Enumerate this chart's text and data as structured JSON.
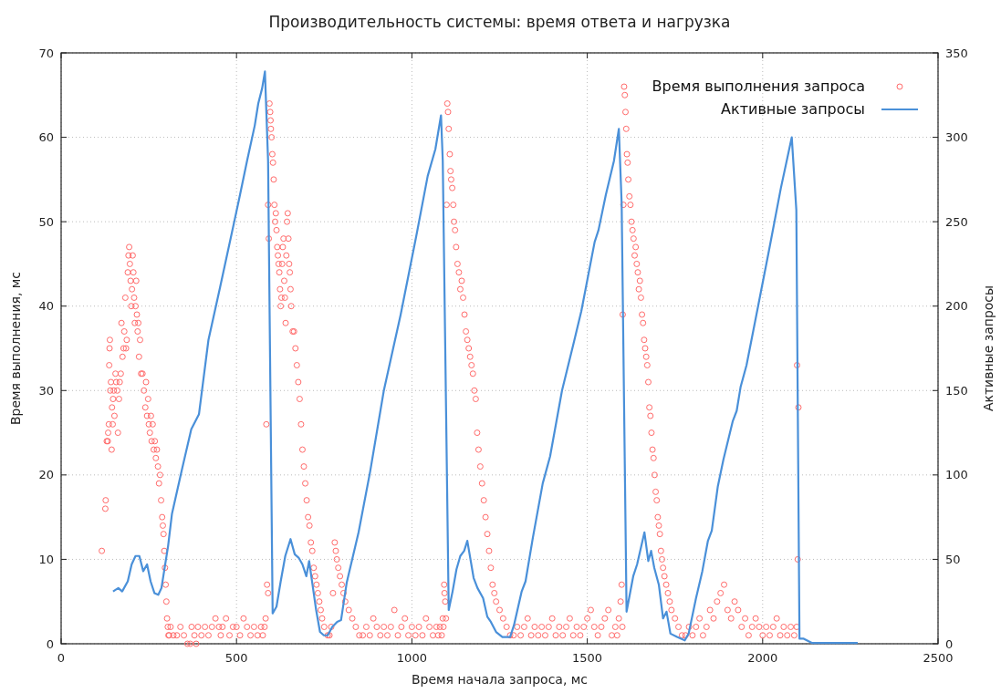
{
  "chart_data": {
    "type": "scatter",
    "title": "Производительность системы: время ответа и нагрузка",
    "xlabel": "Время начала запроса, мс",
    "ylabel": "Время выполнения, мс",
    "y2label": "Активные запросы",
    "xlim": [
      0,
      2500
    ],
    "xticks": [
      0,
      500,
      1000,
      1500,
      2000,
      2500
    ],
    "ylim": [
      0,
      70
    ],
    "yticks": [
      0,
      10,
      20,
      30,
      40,
      50,
      60,
      70
    ],
    "y2lim": [
      0,
      350
    ],
    "y2ticks": [
      0,
      50,
      100,
      150,
      200,
      250,
      300,
      350
    ],
    "grid": true,
    "legend": "top right",
    "series": [
      {
        "name": "Время выполнения запроса",
        "marker": "circle",
        "color": "#ff6b6b",
        "x": [
          116,
          126,
          127,
          130,
          133,
          134,
          136,
          137,
          138,
          139,
          140,
          142,
          144,
          145,
          147,
          148,
          150,
          152,
          155,
          157,
          160,
          162,
          165,
          167,
          170,
          172,
          175,
          178,
          180,
          183,
          185,
          187,
          190,
          192,
          194,
          196,
          198,
          200,
          202,
          204,
          206,
          208,
          210,
          212,
          214,
          216,
          218,
          220,
          222,
          225,
          228,
          232,
          236,
          240,
          242,
          245,
          248,
          250,
          253,
          256,
          258,
          261,
          264,
          267,
          270,
          273,
          276,
          279,
          282,
          285,
          288,
          290,
          292,
          294,
          296,
          298,
          300,
          302,
          304,
          306,
          308,
          312,
          320,
          330,
          340,
          350,
          360,
          368,
          372,
          380,
          385,
          390,
          400,
          410,
          420,
          430,
          440,
          450,
          455,
          460,
          470,
          480,
          490,
          500,
          510,
          520,
          530,
          540,
          550,
          560,
          570,
          575,
          580,
          583,
          585,
          587,
          590,
          590,
          592,
          594,
          596,
          597,
          598,
          600,
          602,
          604,
          606,
          608,
          610,
          612,
          614,
          616,
          618,
          620,
          622,
          624,
          626,
          628,
          630,
          632,
          634,
          636,
          638,
          640,
          642,
          644,
          646,
          648,
          650,
          652,
          654,
          656,
          660,
          664,
          668,
          672,
          676,
          680,
          684,
          688,
          692,
          696,
          700,
          704,
          708,
          712,
          716,
          720,
          724,
          728,
          732,
          736,
          740,
          744,
          750,
          760,
          765,
          770,
          775,
          780,
          783,
          786,
          790,
          795,
          800,
          805,
          810,
          820,
          830,
          840,
          850,
          860,
          870,
          880,
          890,
          900,
          910,
          920,
          930,
          940,
          950,
          960,
          970,
          980,
          990,
          1000,
          1010,
          1020,
          1030,
          1040,
          1050,
          1060,
          1070,
          1075,
          1080,
          1085,
          1088,
          1090,
          1092,
          1093,
          1095,
          1097,
          1099,
          1101,
          1103,
          1105,
          1108,
          1110,
          1112,
          1115,
          1118,
          1120,
          1123,
          1126,
          1130,
          1134,
          1138,
          1142,
          1146,
          1150,
          1154,
          1158,
          1162,
          1166,
          1170,
          1174,
          1178,
          1182,
          1186,
          1190,
          1195,
          1200,
          1205,
          1210,
          1215,
          1220,
          1225,
          1230,
          1235,
          1240,
          1250,
          1260,
          1270,
          1280,
          1290,
          1300,
          1310,
          1320,
          1330,
          1340,
          1350,
          1360,
          1370,
          1380,
          1390,
          1400,
          1410,
          1420,
          1430,
          1440,
          1450,
          1460,
          1470,
          1480,
          1490,
          1500,
          1510,
          1520,
          1530,
          1540,
          1550,
          1560,
          1570,
          1580,
          1585,
          1590,
          1595,
          1598,
          1600,
          1601,
          1603,
          1605,
          1607,
          1609,
          1611,
          1613,
          1615,
          1617,
          1620,
          1623,
          1626,
          1629,
          1632,
          1635,
          1638,
          1641,
          1644,
          1647,
          1650,
          1653,
          1656,
          1659,
          1662,
          1665,
          1668,
          1671,
          1674,
          1677,
          1680,
          1683,
          1686,
          1689,
          1692,
          1695,
          1698,
          1701,
          1704,
          1707,
          1710,
          1713,
          1716,
          1720,
          1725,
          1730,
          1735,
          1740,
          1750,
          1760,
          1770,
          1780,
          1790,
          1800,
          1810,
          1820,
          1830,
          1840,
          1850,
          1860,
          1870,
          1880,
          1890,
          1900,
          1910,
          1920,
          1930,
          1940,
          1950,
          1960,
          1970,
          1980,
          1990,
          2000,
          2010,
          2020,
          2030,
          2040,
          2050,
          2060,
          2070,
          2080,
          2090,
          2097,
          2098,
          2100,
          2102
        ],
        "values": [
          11,
          16,
          17,
          24,
          24,
          25,
          26,
          33,
          35,
          36,
          30,
          31,
          23,
          28,
          26,
          29,
          30,
          27,
          32,
          31,
          30,
          25,
          29,
          31,
          32,
          38,
          34,
          35,
          37,
          41,
          35,
          36,
          44,
          46,
          47,
          45,
          43,
          40,
          42,
          46,
          44,
          41,
          38,
          40,
          43,
          39,
          37,
          38,
          34,
          36,
          32,
          32,
          30,
          28,
          31,
          27,
          29,
          26,
          25,
          27,
          24,
          26,
          23,
          24,
          22,
          23,
          21,
          19,
          20,
          17,
          15,
          14,
          13,
          11,
          9,
          7,
          5,
          3,
          2,
          1,
          1,
          2,
          1,
          1,
          2,
          1,
          0,
          0,
          2,
          1,
          0,
          2,
          1,
          2,
          1,
          2,
          3,
          2,
          1,
          2,
          3,
          1,
          2,
          2,
          1,
          3,
          2,
          1,
          2,
          1,
          2,
          1,
          2,
          3,
          26,
          7,
          6,
          52,
          48,
          64,
          63,
          62,
          61,
          60,
          58,
          57,
          55,
          52,
          50,
          51,
          49,
          47,
          46,
          45,
          44,
          42,
          40,
          41,
          45,
          47,
          48,
          43,
          41,
          38,
          46,
          50,
          51,
          48,
          45,
          44,
          42,
          40,
          37,
          37,
          35,
          33,
          31,
          29,
          26,
          23,
          21,
          19,
          17,
          15,
          14,
          12,
          11,
          9,
          8,
          7,
          6,
          5,
          4,
          3,
          2,
          1,
          1,
          2,
          6,
          12,
          11,
          10,
          9,
          8,
          7,
          6,
          5,
          4,
          3,
          2,
          1,
          1,
          2,
          1,
          3,
          2,
          1,
          2,
          1,
          2,
          4,
          1,
          2,
          3,
          1,
          2,
          1,
          2,
          1,
          3,
          2,
          1,
          2,
          1,
          2,
          1,
          3,
          2,
          7,
          6,
          5,
          3,
          52,
          64,
          63,
          61,
          58,
          56,
          55,
          54,
          52,
          50,
          49,
          47,
          45,
          44,
          42,
          43,
          41,
          39,
          37,
          36,
          35,
          34,
          33,
          32,
          30,
          29,
          25,
          23,
          21,
          19,
          17,
          15,
          13,
          11,
          9,
          7,
          6,
          5,
          4,
          3,
          2,
          1,
          1,
          2,
          1,
          2,
          3,
          1,
          2,
          1,
          2,
          1,
          2,
          3,
          1,
          2,
          1,
          2,
          3,
          1,
          2,
          1,
          2,
          3,
          4,
          2,
          1,
          2,
          3,
          4,
          1,
          2,
          1,
          3,
          5,
          7,
          2,
          39,
          52,
          66,
          65,
          63,
          61,
          58,
          57,
          55,
          53,
          52,
          50,
          49,
          48,
          46,
          47,
          45,
          44,
          42,
          43,
          41,
          39,
          38,
          36,
          35,
          34,
          33,
          31,
          28,
          27,
          25,
          23,
          22,
          20,
          18,
          17,
          15,
          14,
          13,
          11,
          10,
          9,
          8,
          7,
          6,
          5,
          4,
          3,
          2,
          1,
          1,
          2,
          1,
          2,
          3,
          1,
          2,
          4,
          3,
          5,
          6,
          7,
          4,
          3,
          5,
          4,
          2,
          3,
          1,
          2,
          3,
          2,
          1,
          2,
          1,
          2,
          3,
          1,
          2,
          1,
          2,
          1,
          2,
          33,
          10,
          28
        ]
      },
      {
        "name": "Активные запросы",
        "type": "line",
        "axis": "y2",
        "marker": "none",
        "color": "#4a90d9",
        "x": [
          148,
          163,
          174,
          190,
          201,
          212,
          223,
          234,
          245,
          255,
          266,
          277,
          286,
          305,
          316,
          343,
          371,
          393,
          420,
          453,
          507,
          530,
          552,
          562,
          573,
          581,
          590,
          603,
          614,
          626,
          639,
          654,
          666,
          677,
          688,
          699,
          707,
          716,
          727,
          738,
          749,
          760,
          773,
          787,
          798,
          814,
          848,
          881,
          920,
          968,
          1012,
          1045,
          1067,
          1083,
          1088,
          1105,
          1116,
          1127,
          1138,
          1149,
          1158,
          1176,
          1187,
          1203,
          1215,
          1225,
          1240,
          1258,
          1280,
          1291,
          1313,
          1324,
          1345,
          1373,
          1394,
          1428,
          1461,
          1483,
          1521,
          1532,
          1553,
          1576,
          1590,
          1598,
          1612,
          1631,
          1642,
          1663,
          1674,
          1682,
          1691,
          1704,
          1716,
          1726,
          1737,
          1756,
          1778,
          1789,
          1810,
          1828,
          1844,
          1855,
          1872,
          1888,
          1915,
          1926,
          1937,
          1954,
          1987,
          2019,
          2052,
          2083,
          2096,
          2105,
          2117,
          2140,
          2271
        ],
        "values": [
          31,
          33,
          31,
          37,
          47,
          52,
          52,
          43,
          47,
          37,
          30,
          29,
          33,
          58,
          77,
          102,
          127,
          136,
          180,
          211,
          263,
          286,
          307,
          320,
          329,
          339,
          286,
          18,
          22,
          37,
          52,
          62,
          53,
          51,
          47,
          40,
          49,
          36,
          20,
          7,
          5,
          5,
          10,
          13,
          14,
          36,
          66,
          102,
          150,
          195,
          241,
          277,
          293,
          313,
          286,
          20,
          31,
          44,
          52,
          55,
          61,
          39,
          33,
          27,
          16,
          13,
          7,
          4,
          4,
          11,
          31,
          37,
          63,
          95,
          111,
          150,
          178,
          197,
          238,
          245,
          266,
          286,
          305,
          261,
          19,
          40,
          47,
          66,
          49,
          55,
          45,
          35,
          15,
          19,
          6,
          4,
          2,
          6,
          27,
          43,
          61,
          67,
          93,
          109,
          132,
          138,
          152,
          165,
          200,
          234,
          270,
          300,
          257,
          3,
          3,
          0.5,
          0.5
        ]
      }
    ]
  }
}
